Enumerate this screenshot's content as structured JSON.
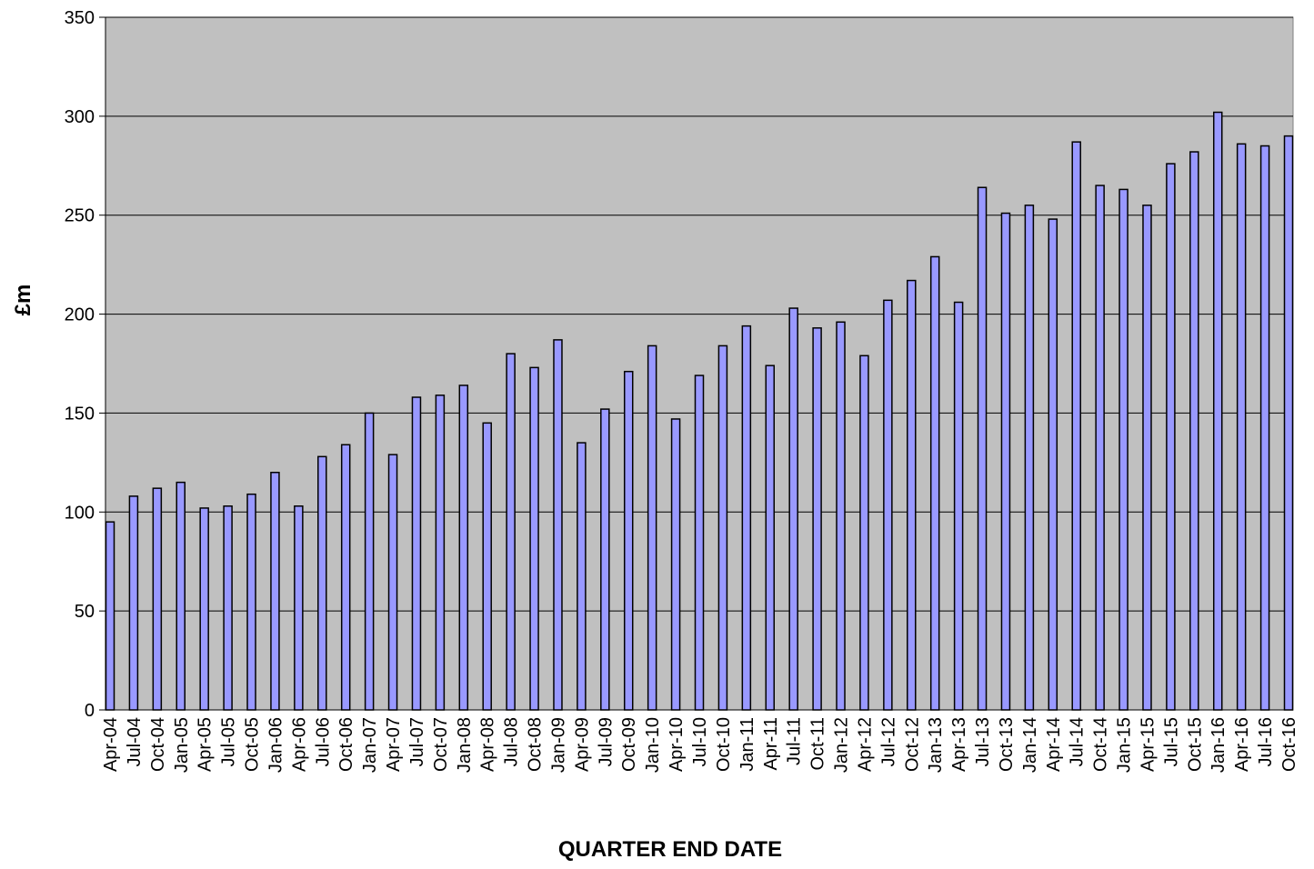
{
  "chart_data": {
    "type": "bar",
    "x_label": "QUARTER END DATE",
    "y_label": "£m",
    "categories": [
      "Apr-04",
      "Jul-04",
      "Oct-04",
      "Jan-05",
      "Apr-05",
      "Jul-05",
      "Oct-05",
      "Jan-06",
      "Apr-06",
      "Jul-06",
      "Oct-06",
      "Jan-07",
      "Apr-07",
      "Jul-07",
      "Oct-07",
      "Jan-08",
      "Apr-08",
      "Jul-08",
      "Oct-08",
      "Jan-09",
      "Apr-09",
      "Jul-09",
      "Oct-09",
      "Jan-10",
      "Apr-10",
      "Jul-10",
      "Oct-10",
      "Jan-11",
      "Apr-11",
      "Jul-11",
      "Oct-11",
      "Jan-12",
      "Apr-12",
      "Jul-12",
      "Oct-12",
      "Jan-13",
      "Apr-13",
      "Jul-13",
      "Oct-13",
      "Jan-14",
      "Apr-14",
      "Jul-14",
      "Oct-14",
      "Jan-15",
      "Apr-15",
      "Jul-15",
      "Oct-15",
      "Jan-16",
      "Apr-16",
      "Jul-16",
      "Oct-16"
    ],
    "values": [
      95,
      108,
      112,
      115,
      102,
      103,
      109,
      120,
      103,
      128,
      134,
      150,
      129,
      158,
      159,
      164,
      145,
      180,
      173,
      187,
      135,
      152,
      171,
      184,
      147,
      169,
      184,
      194,
      174,
      203,
      193,
      196,
      179,
      207,
      217,
      229,
      206,
      264,
      251,
      255,
      248,
      287,
      265,
      263,
      255,
      276,
      282,
      302,
      286,
      285,
      290
    ],
    "color": "#9999ff",
    "background": "#c0c0c0",
    "ylim": [
      0,
      350
    ],
    "yticks": [
      0,
      50,
      100,
      150,
      200,
      250,
      300,
      350
    ],
    "grid": true
  }
}
